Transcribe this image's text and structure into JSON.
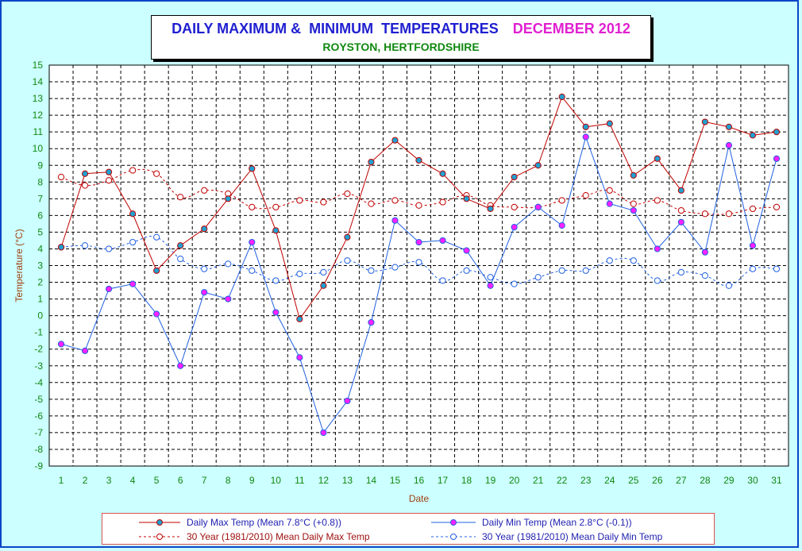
{
  "title": {
    "main": "DAILY MAXIMUM &  MINIMUM  TEMPERATURES",
    "month": "DECEMBER 2012",
    "subtitle": "ROYSTON, HERTFORDSHIRE"
  },
  "colors": {
    "background": "#ccffff",
    "plot_background": "#ffffff",
    "max_line": "#c00000",
    "min_line": "#2060e0",
    "marker_fill_max": "#20a0d0",
    "marker_fill_min": "#ff20ff",
    "tick_label": "#108810",
    "axis_title": "#a04010"
  },
  "chart_data": {
    "type": "line",
    "xlabel": "Date",
    "ylabel": "Temperature (°C)",
    "ylim": [
      -9,
      15
    ],
    "xlim": [
      0.5,
      31.5
    ],
    "grid": true,
    "legend_position": "bottom",
    "x": [
      1,
      2,
      3,
      4,
      5,
      6,
      7,
      8,
      9,
      10,
      11,
      12,
      13,
      14,
      15,
      16,
      17,
      18,
      19,
      20,
      21,
      22,
      23,
      24,
      25,
      26,
      27,
      28,
      29,
      30,
      31
    ],
    "series": [
      {
        "name": "Daily Max Temp (Mean 7.8°C (+0.8))",
        "style": "solid",
        "values": [
          4.1,
          8.5,
          8.6,
          6.1,
          2.7,
          4.2,
          5.2,
          7.0,
          8.8,
          5.1,
          -0.2,
          1.8,
          4.7,
          9.2,
          10.5,
          9.3,
          8.5,
          7.0,
          6.4,
          8.3,
          9.0,
          13.1,
          11.3,
          11.5,
          8.4,
          9.4,
          7.5,
          11.6,
          11.3,
          10.8,
          11.0
        ]
      },
      {
        "name": "Daily Min Temp (Mean 2.8°C (-0.1))",
        "style": "solid",
        "values": [
          -1.7,
          -2.1,
          1.6,
          1.9,
          0.1,
          -3.0,
          1.4,
          1.0,
          4.4,
          0.2,
          -2.5,
          -7.0,
          -5.1,
          -0.4,
          5.7,
          4.4,
          4.5,
          3.9,
          1.8,
          5.3,
          6.5,
          5.4,
          10.7,
          6.7,
          6.3,
          4.0,
          5.6,
          3.8,
          10.2,
          4.2,
          9.4
        ]
      },
      {
        "name": "30 Year (1981/2010) Mean Daily Max Temp",
        "style": "dashed",
        "values": [
          8.3,
          7.8,
          8.1,
          8.7,
          8.5,
          7.1,
          7.5,
          7.3,
          6.5,
          6.5,
          6.9,
          6.8,
          7.3,
          6.7,
          6.9,
          6.6,
          6.8,
          7.2,
          6.6,
          6.5,
          6.5,
          6.9,
          7.2,
          7.5,
          6.7,
          6.9,
          6.3,
          6.1,
          6.1,
          6.4,
          6.5
        ]
      },
      {
        "name": "30 Year (1981/2010) Mean Daily Min Temp",
        "style": "dashed",
        "values": [
          4.1,
          4.2,
          4.0,
          4.4,
          4.7,
          3.4,
          2.8,
          3.1,
          2.7,
          2.1,
          2.5,
          2.6,
          3.3,
          2.7,
          2.9,
          3.2,
          2.1,
          2.7,
          2.3,
          1.9,
          2.3,
          2.7,
          2.7,
          3.3,
          3.3,
          2.1,
          2.6,
          2.4,
          1.8,
          2.8,
          2.8
        ]
      }
    ],
    "y_ticks": [
      "15",
      "14",
      "13",
      "12",
      "11",
      "10",
      "9",
      "8",
      "7",
      "6",
      "5",
      "4",
      "3",
      "2",
      "1",
      "0",
      "-1",
      "-2",
      "-3",
      "-4",
      "-5",
      "-6",
      "-7",
      "-8",
      "-9"
    ],
    "x_ticks": [
      "1",
      "2",
      "3",
      "4",
      "5",
      "6",
      "7",
      "8",
      "9",
      "10",
      "11",
      "12",
      "13",
      "14",
      "15",
      "16",
      "17",
      "18",
      "19",
      "20",
      "21",
      "22",
      "23",
      "24",
      "25",
      "26",
      "27",
      "28",
      "29",
      "30",
      "31"
    ]
  }
}
